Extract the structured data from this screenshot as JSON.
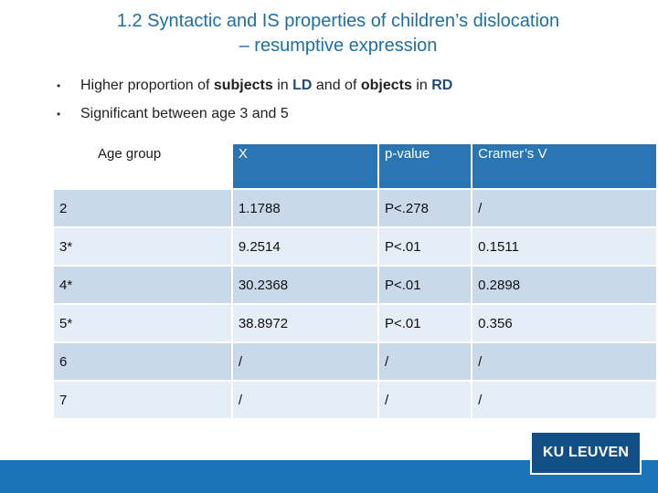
{
  "title": {
    "line1": "1.2 Syntactic and IS properties of children’s dislocation",
    "line2": "– resumptive expression"
  },
  "bullets": {
    "b1": {
      "t1": "Higher proportion of ",
      "t2": "subjects",
      "t3": " in ",
      "t4": "LD",
      "t5": " and of ",
      "t6": "objects",
      "t7": " in ",
      "t8": "RD"
    },
    "b2": "Significant between age 3 and 5"
  },
  "table": {
    "headers": [
      "Age group",
      "X",
      "p-value",
      "Cramer’s V"
    ],
    "rows": [
      [
        "2",
        "1.1788",
        "P<.278",
        "/"
      ],
      [
        "3*",
        "9.2514",
        "P<.01",
        "0.1511"
      ],
      [
        "4*",
        "30.2368",
        "P<.01",
        "0.2898"
      ],
      [
        "5*",
        "38.8972",
        "P<.01",
        "0.356"
      ],
      [
        "6",
        "/",
        "/",
        "/"
      ],
      [
        "7",
        "/",
        "/",
        "/"
      ]
    ]
  },
  "logo": "KU LEUVEN",
  "colors": {
    "title": "#1d6fa6",
    "header": "#2a75b4",
    "row_dark": "#c9d9ea",
    "row_light": "#e5edf6",
    "footer": "#1b74b8",
    "logo": "#114f86"
  }
}
